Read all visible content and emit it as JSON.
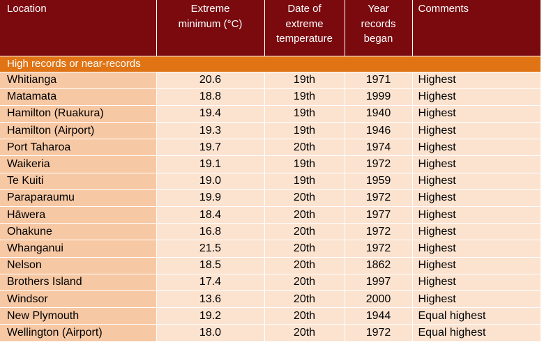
{
  "headers": {
    "location": "Location",
    "minimum_line1": "Extreme",
    "minimum_line2": "minimum (°C)",
    "date_line1": "Date of",
    "date_line2": "extreme",
    "date_line3": "temperature",
    "year_line1": "Year",
    "year_line2": "records",
    "year_line3": "began",
    "comments": "Comments"
  },
  "section_title": "High records or near-records",
  "rows": [
    {
      "location": "Whitianga",
      "minimum": "20.6",
      "date": "19th",
      "year": "1971",
      "comment": "Highest"
    },
    {
      "location": "Matamata",
      "minimum": "18.8",
      "date": "19th",
      "year": "1999",
      "comment": "Highest"
    },
    {
      "location": "Hamilton (Ruakura)",
      "minimum": "19.4",
      "date": "19th",
      "year": "1940",
      "comment": "Highest"
    },
    {
      "location": "Hamilton (Airport)",
      "minimum": "19.3",
      "date": "19th",
      "year": "1946",
      "comment": "Highest"
    },
    {
      "location": "Port Taharoa",
      "minimum": "19.7",
      "date": "20th",
      "year": "1974",
      "comment": "Highest"
    },
    {
      "location": "Waikeria",
      "minimum": "19.1",
      "date": "19th",
      "year": "1972",
      "comment": "Highest"
    },
    {
      "location": "Te Kuiti",
      "minimum": "19.0",
      "date": "19th",
      "year": "1959",
      "comment": "Highest"
    },
    {
      "location": "Paraparaumu",
      "minimum": "19.9",
      "date": "20th",
      "year": "1972",
      "comment": "Highest"
    },
    {
      "location": "Hāwera",
      "minimum": "18.4",
      "date": "20th",
      "year": "1977",
      "comment": "Highest"
    },
    {
      "location": "Ohakune",
      "minimum": "16.8",
      "date": "20th",
      "year": "1972",
      "comment": "Highest"
    },
    {
      "location": "Whanganui",
      "minimum": "21.5",
      "date": "20th",
      "year": "1972",
      "comment": "Highest"
    },
    {
      "location": "Nelson",
      "minimum": "18.5",
      "date": "20th",
      "year": "1862",
      "comment": "Highest"
    },
    {
      "location": "Brothers Island",
      "minimum": "17.4",
      "date": "20th",
      "year": "1997",
      "comment": "Highest"
    },
    {
      "location": "Windsor",
      "minimum": "13.6",
      "date": "20th",
      "year": "2000",
      "comment": "Highest"
    },
    {
      "location": "New Plymouth",
      "minimum": "19.2",
      "date": "20th",
      "year": "1944",
      "comment": "Equal highest"
    },
    {
      "location": "Wellington (Airport)",
      "minimum": "18.0",
      "date": "20th",
      "year": "1972",
      "comment": "Equal highest"
    }
  ]
}
